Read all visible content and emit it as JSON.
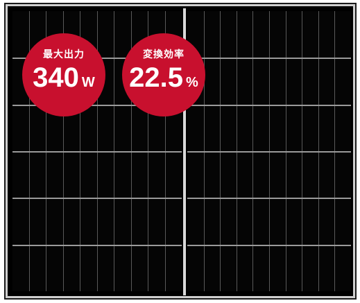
{
  "badges": {
    "power": {
      "label": "最大出力",
      "value": "340",
      "unit": "W"
    },
    "efficiency": {
      "label": "変換効率",
      "value": "22.5",
      "unit": "%"
    }
  },
  "colors": {
    "badge": "#c8102e",
    "panel": "#000000",
    "grid": "#9a9a9a",
    "frame": "#cfcfcf"
  }
}
